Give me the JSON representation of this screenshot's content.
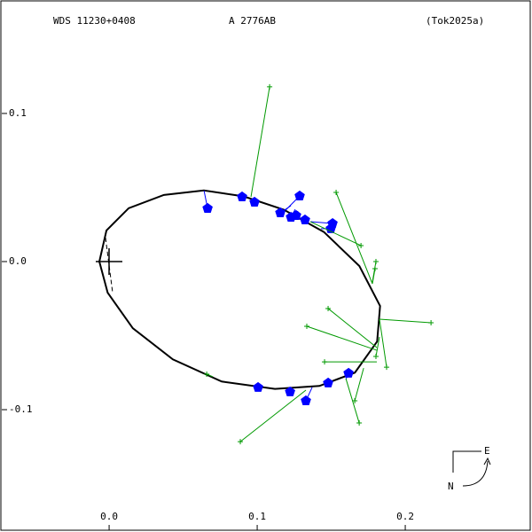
{
  "chart_data": {
    "type": "scatter",
    "header": {
      "left": "WDS 11230+0408",
      "center": "A  2776AB",
      "right": "(Tok2025a)"
    },
    "compass": {
      "east": "E",
      "north": "N"
    },
    "xlim": [
      -0.0737,
      0.2856
    ],
    "ylim": [
      -0.1826,
      0.1766
    ],
    "xticks": [
      {
        "value": 0,
        "label": "0.0"
      },
      0.1,
      0.2
    ],
    "yticks": [
      0.1,
      {
        "value": 0,
        "label": "0.0"
      },
      -0.1
    ],
    "series": [
      {
        "type": "line",
        "color": "#000000",
        "x": [
          -0.0066,
          -0.0018,
          0.0132,
          0.037,
          0.064,
          0.091,
          0.118,
          0.145,
          0.169,
          0.183,
          0.181,
          0.166,
          0.142,
          0.112,
          0.076,
          0.043,
          0.016,
          -0.001,
          -0.0066
        ],
        "y": [
          0,
          0.021,
          0.036,
          0.045,
          0.048,
          0.044,
          0.035,
          0.02,
          -0.003,
          -0.03,
          -0.054,
          -0.075,
          -0.084,
          -0.086,
          -0.081,
          -0.066,
          -0.045,
          -0.021,
          0
        ]
      },
      {
        "type": "points",
        "marker": "dot",
        "color": "#0000ff",
        "x": [
          0.0665,
          0.0898,
          0.0982,
          0.1156,
          0.1228,
          0.1263,
          0.1287,
          0.1323,
          0.1509,
          0.1497,
          0.1006,
          0.1222,
          0.1329,
          0.1479,
          0.1617
        ],
        "y": [
          0.0359,
          0.0437,
          0.0401,
          0.0329,
          0.0299,
          0.0311,
          0.0443,
          0.0281,
          0.0257,
          0.0222,
          -0.085,
          -0.088,
          -0.094,
          -0.082,
          -0.0754
        ],
        "orbit_x": [
          0.0641,
          0.091,
          0.097,
          0.1228,
          0.1257,
          0.1275,
          0.1192,
          0.1335,
          0.1359,
          0.1431,
          0.1,
          0.1228,
          0.1371,
          0.1491,
          0.1599
        ],
        "orbit_y": [
          0.0479,
          0.0437,
          0.0425,
          0.0377,
          0.0353,
          0.0341,
          0.0347,
          0.0281,
          0.0269,
          0.0222,
          -0.0856,
          -0.085,
          -0.085,
          -0.0826,
          -0.0796
        ]
      },
      {
        "type": "points",
        "marker": "plus",
        "color": "#009900",
        "x": [
          0.1084,
          0.1533,
          0.1701,
          0.1802,
          0.1796,
          0.1479,
          0.1335,
          0.2174,
          0.1455,
          0.1874,
          0.1802,
          0.1659,
          0.1689,
          0.0886,
          0.0659
        ],
        "y": [
          0.118,
          0.0467,
          0.0108,
          0,
          -0.0048,
          -0.0317,
          -0.0437,
          -0.0413,
          -0.0677,
          -0.0713,
          -0.0641,
          -0.094,
          -0.109,
          -0.1216,
          -0.076
        ],
        "orbit_x": [
          0.0958,
          0.1778,
          0.1359,
          0.1778,
          0.1778,
          0.1808,
          0.1808,
          0.1826,
          0.1808,
          0.1826,
          0.1826,
          0.1719,
          0.1599,
          0.1329,
          0.0701
        ],
        "orbit_y": [
          0.0437,
          -0.015,
          0.0269,
          -0.0138,
          -0.015,
          -0.0581,
          -0.0599,
          -0.0389,
          -0.0677,
          -0.0389,
          -0.0509,
          -0.0719,
          -0.079,
          -0.0868,
          -0.0778
        ]
      }
    ]
  }
}
